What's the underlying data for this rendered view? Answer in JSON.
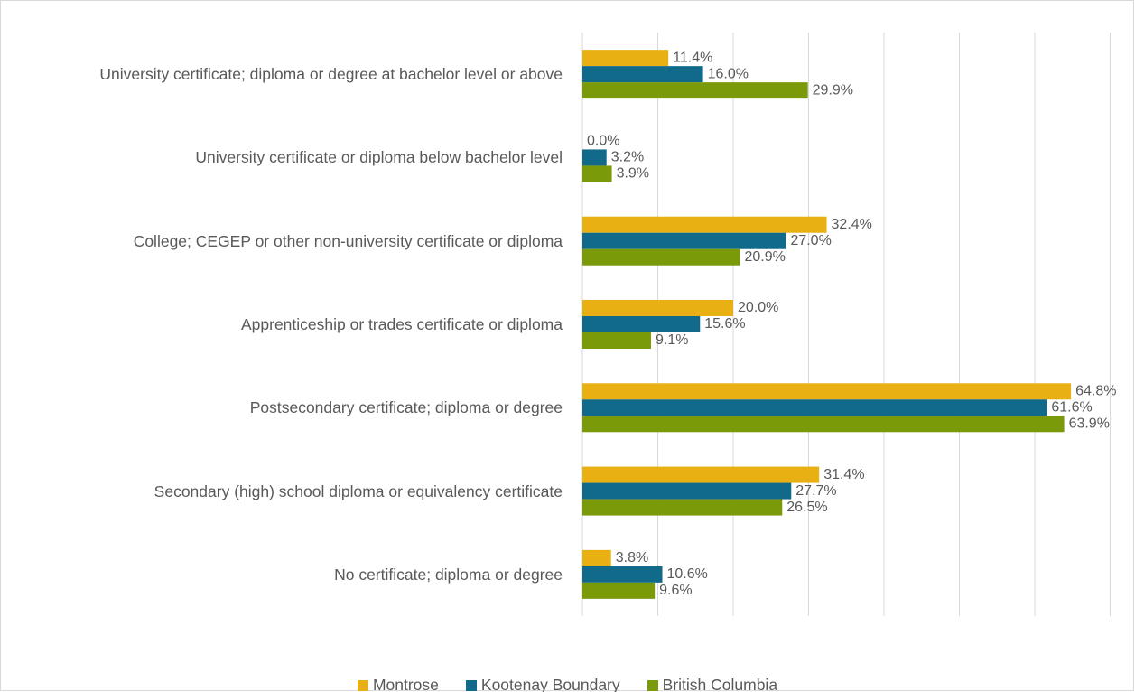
{
  "chart_data": {
    "type": "bar",
    "orientation": "horizontal",
    "categories": [
      "University certificate; diploma or degree at bachelor level or above",
      "University certificate or diploma below bachelor level",
      "College; CEGEP or other non-university certificate or diploma",
      "Apprenticeship or trades certificate or diploma",
      "Postsecondary certificate; diploma or degree",
      "Secondary (high) school diploma or equivalency certificate",
      "No certificate; diploma or degree"
    ],
    "series": [
      {
        "name": "Montrose",
        "color": "#e8b012",
        "values": [
          11.4,
          0.0,
          32.4,
          20.0,
          64.8,
          31.4,
          3.8
        ],
        "value_labels": [
          "11.4%",
          "0.0%",
          "32.4%",
          "20.0%",
          "64.8%",
          "31.4%",
          "3.8%"
        ]
      },
      {
        "name": "Kootenay Boundary",
        "color": "#126a8b",
        "values": [
          16.0,
          3.2,
          27.0,
          15.6,
          61.6,
          27.7,
          10.6
        ],
        "value_labels": [
          "16.0%",
          "3.2%",
          "27.0%",
          "15.6%",
          "61.6%",
          "27.7%",
          "10.6%"
        ]
      },
      {
        "name": "British Columbia",
        "color": "#7a9a0a",
        "values": [
          29.9,
          3.9,
          20.9,
          9.1,
          63.9,
          26.5,
          9.6
        ],
        "value_labels": [
          "29.9%",
          "3.9%",
          "20.9%",
          "9.1%",
          "63.9%",
          "26.5%",
          "9.6%"
        ]
      }
    ],
    "xlim": [
      0,
      70
    ],
    "xticks": [
      0,
      10,
      20,
      30,
      40,
      50,
      60,
      70
    ],
    "grid": true,
    "legend": "bottom"
  }
}
